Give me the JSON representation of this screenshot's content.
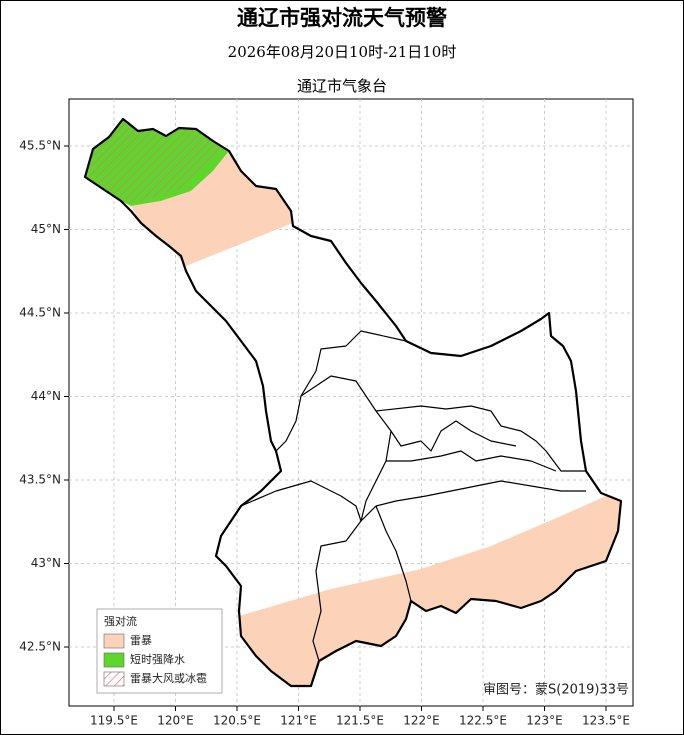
{
  "header": {
    "title": "通辽市强对流天气预警",
    "subtitle": "2026年08月20日10时-21日10时",
    "issuer": "通辽市气象台"
  },
  "map": {
    "xticks": [
      {
        "value": 119.5,
        "label": "119.5°E"
      },
      {
        "value": 120,
        "label": "120°E"
      },
      {
        "value": 120.5,
        "label": "120.5°E"
      },
      {
        "value": 121,
        "label": "121°E"
      },
      {
        "value": 121.5,
        "label": "121.5°E"
      },
      {
        "value": 122,
        "label": "122°E"
      },
      {
        "value": 122.5,
        "label": "122.5°E"
      },
      {
        "value": 123,
        "label": "123°E"
      },
      {
        "value": 123.5,
        "label": "123.5°E"
      }
    ],
    "yticks": [
      {
        "value": 45.5,
        "label": "45.5°N"
      },
      {
        "value": 45,
        "label": "45°N"
      },
      {
        "value": 44.5,
        "label": "44.5°N"
      },
      {
        "value": 44,
        "label": "44°N"
      },
      {
        "value": 43.5,
        "label": "43.5°N"
      },
      {
        "value": 43,
        "label": "43°N"
      },
      {
        "value": 42.5,
        "label": "42.5°N"
      }
    ],
    "legend": {
      "title": "强对流",
      "items": [
        {
          "label": "雷暴",
          "color": "#fcd2b8"
        },
        {
          "label": "短时强降水",
          "color": "#5ed62b"
        },
        {
          "label": "雷暴大风或冰雹",
          "color": "#e07080"
        }
      ]
    },
    "approval": "审图号：蒙S(2019)33号"
  }
}
